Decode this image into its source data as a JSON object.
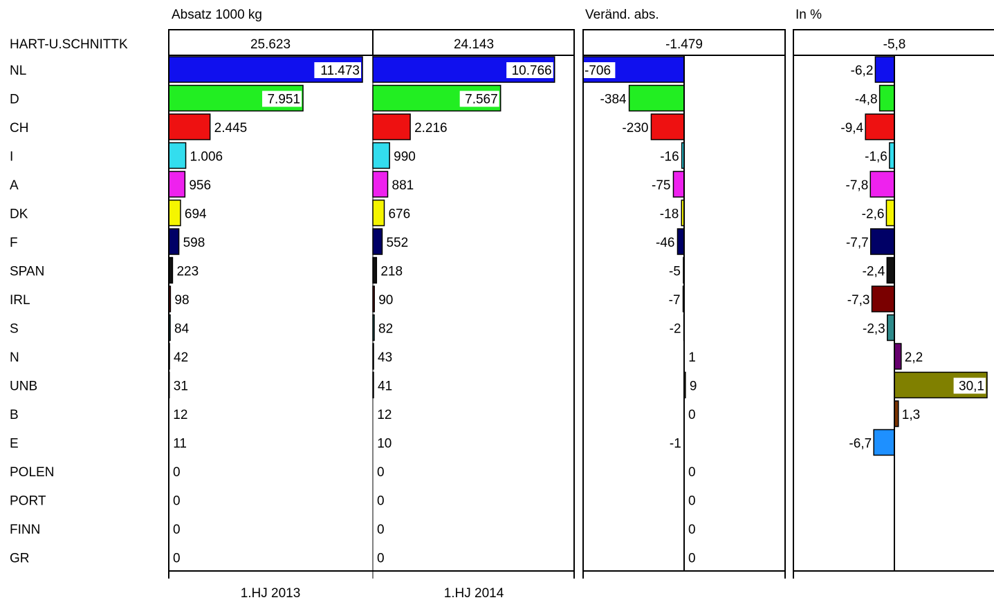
{
  "chart_data": {
    "type": "bar",
    "panel_titles": {
      "absatz": "Absatz 1000 kg",
      "change_abs": "Veränd. abs.",
      "change_pct": "In %"
    },
    "total": {
      "label": "HART-U.SCHNITTK",
      "y2013": "25.623",
      "y2014": "24.143",
      "change_abs": "-1.479",
      "change_pct": "-5,8"
    },
    "period_labels": [
      "1.HJ 2013",
      "1.HJ 2014"
    ],
    "categories": [
      "NL",
      "D",
      "CH",
      "I",
      "A",
      "DK",
      "F",
      "SPAN",
      "IRL",
      "S",
      "N",
      "UNB",
      "B",
      "E",
      "POLEN",
      "PORT",
      "FINN",
      "GR"
    ],
    "series": [
      {
        "name": "1.HJ 2013",
        "values": [
          11473,
          7951,
          2445,
          1006,
          956,
          694,
          598,
          223,
          98,
          84,
          42,
          31,
          12,
          11,
          0,
          0,
          0,
          0
        ]
      },
      {
        "name": "1.HJ 2014",
        "values": [
          10766,
          7567,
          2216,
          990,
          881,
          676,
          552,
          218,
          90,
          82,
          43,
          41,
          12,
          10,
          0,
          0,
          0,
          0
        ]
      }
    ],
    "change_abs": [
      -706,
      -384,
      -230,
      -16,
      -75,
      -18,
      -46,
      -5,
      -7,
      -2,
      1,
      9,
      0,
      -1,
      0,
      0,
      0,
      0
    ],
    "change_pct": [
      -6.2,
      -4.8,
      -9.4,
      -1.6,
      -7.8,
      -2.6,
      -7.7,
      -2.4,
      -7.3,
      -2.3,
      2.2,
      30.1,
      1.3,
      -6.7,
      null,
      null,
      null,
      null
    ],
    "labels": {
      "y2013": [
        "11.473",
        "7.951",
        "2.445",
        "1.006",
        "956",
        "694",
        "598",
        "223",
        "98",
        "84",
        "42",
        "31",
        "12",
        "11",
        "0",
        "0",
        "0",
        "0"
      ],
      "y2014": [
        "10.766",
        "7.567",
        "2.216",
        "990",
        "881",
        "676",
        "552",
        "218",
        "90",
        "82",
        "43",
        "41",
        "12",
        "10",
        "0",
        "0",
        "0",
        "0"
      ],
      "change_abs": [
        "-706",
        "-384",
        "-230",
        "-16",
        "-75",
        "-18",
        "-46",
        "-5",
        "-7",
        "-2",
        "1",
        "9",
        "0",
        "-1",
        "0",
        "0",
        "0",
        "0"
      ],
      "change_pct": [
        "-6,2",
        "-4,8",
        "-9,4",
        "-1,6",
        "-7,8",
        "-2,6",
        "-7,7",
        "-2,4",
        "-7,3",
        "-2,3",
        "2,2",
        "30,1",
        "1,3",
        "-6,7",
        "",
        "",
        "",
        ""
      ]
    },
    "colors": [
      "#1010ee",
      "#22ee22",
      "#ee1111",
      "#33ddee",
      "#ee22ee",
      "#f5f500",
      "#000066",
      "#111111",
      "#7a0000",
      "#2e8b8b",
      "#66006e",
      "#808000",
      "#7a3300",
      "#1e90ff",
      "#888888",
      "#888888",
      "#888888",
      "#888888"
    ],
    "xlim_absatz": [
      0,
      11473
    ],
    "xlim_change_abs": [
      -706,
      0
    ],
    "xlim_change_pct": [
      -10,
      30.1
    ]
  }
}
